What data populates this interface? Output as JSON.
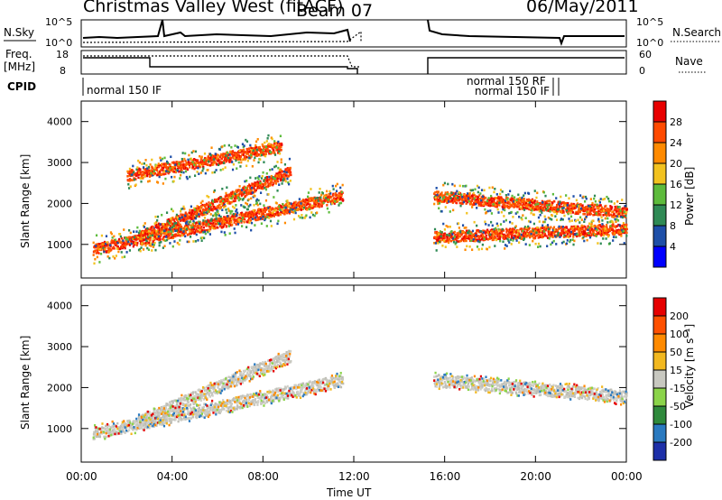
{
  "header": {
    "radar": "Christmas Valley West (fitACF)",
    "beam": "Beam 07",
    "date": "06/May/2011"
  },
  "top_panels": {
    "nsky_label": "N.Sky",
    "nsearch_label": "N.Search",
    "noise_ticks": [
      "10^5",
      "10^0"
    ],
    "freq_label": [
      "Freq.",
      "[MHz]"
    ],
    "freq_ticks": [
      "18",
      "8"
    ],
    "nave_label": "Nave",
    "nave_ticks": [
      "60",
      "0"
    ],
    "cpid_label": "CPID",
    "cpid_entries": [
      {
        "text": "normal 150 IF"
      },
      {
        "text": "normal 150 RF"
      },
      {
        "text": "normal 150 IF"
      }
    ]
  },
  "axes": {
    "ylabel": "Slant Range [km]",
    "xlabel": "Time UT",
    "yticks": [
      "1000",
      "2000",
      "3000",
      "4000"
    ],
    "xticks": [
      "00:00",
      "04:00",
      "08:00",
      "12:00",
      "16:00",
      "20:00",
      "00:00"
    ]
  },
  "colorbars": {
    "power": {
      "label": "Power [dB]",
      "ticks": [
        "28",
        "24",
        "20",
        "16",
        "12",
        "8",
        "4"
      ],
      "colors": [
        "#0000ff",
        "#1e4fa8",
        "#2f8a55",
        "#5dbb3c",
        "#f2c21f",
        "#ff8a00",
        "#ff4a00",
        "#e80000"
      ]
    },
    "velocity": {
      "label": "Velocity [m s⁻¹]",
      "ticks": [
        "200",
        "100",
        "50",
        "15",
        "-15",
        "-50",
        "-100",
        "-200"
      ],
      "colors": [
        "#1d2fa8",
        "#2a7ac0",
        "#2f8a3c",
        "#8bd44a",
        "#c8c8c0",
        "#f2b81f",
        "#ff8a00",
        "#ff5000",
        "#e60000"
      ]
    }
  },
  "chart_data": {
    "type": "heatmap",
    "x_range": [
      "00:00",
      "00:00"
    ],
    "y_range_km": [
      180,
      4500
    ],
    "data_gap_ut": [
      "12:00",
      "15:15"
    ],
    "power_features": [
      {
        "start": [
          0.5,
          900
        ],
        "end": [
          11.5,
          2200
        ],
        "color_level": "28"
      },
      {
        "start": [
          2.5,
          1200
        ],
        "end": [
          9.2,
          2800
        ],
        "color_level": "28"
      },
      {
        "start": [
          2.0,
          2700
        ],
        "end": [
          8.8,
          3400
        ],
        "color_level": "28"
      },
      {
        "start": [
          15.5,
          2200
        ],
        "end": [
          24.0,
          1800
        ],
        "color_level": "28"
      },
      {
        "start": [
          15.5,
          1200
        ],
        "end": [
          24.0,
          1400
        ],
        "color_level": "24"
      }
    ],
    "velocity_features": [
      {
        "start": [
          0.5,
          900
        ],
        "end": [
          11.5,
          2200
        ],
        "color_level": "-15"
      },
      {
        "start": [
          2.5,
          1200
        ],
        "end": [
          9.2,
          2800
        ],
        "color_level": "-15"
      },
      {
        "start": [
          15.5,
          2200
        ],
        "end": [
          24.0,
          1800
        ],
        "color_level": "-15"
      }
    ]
  }
}
